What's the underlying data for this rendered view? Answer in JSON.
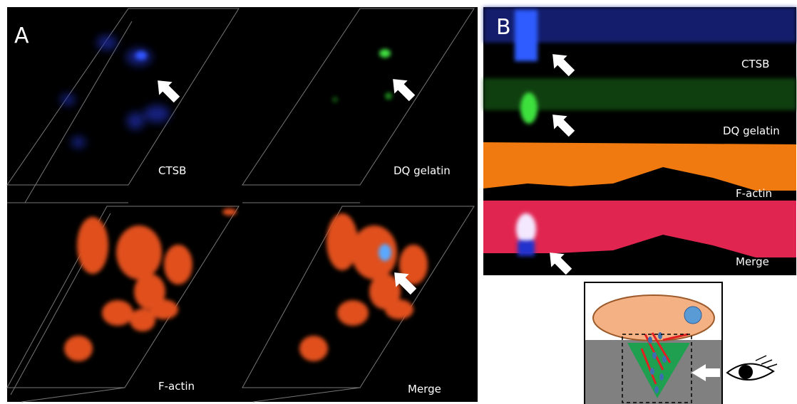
{
  "panel_a": {
    "label": "A",
    "captions": [
      "CTSB",
      "DQ gelatin",
      "F-actin",
      "Merge"
    ]
  },
  "panel_b": {
    "label": "B",
    "captions": [
      "CTSB",
      "DQ gelatin",
      "F-actin",
      "Merge"
    ]
  }
}
